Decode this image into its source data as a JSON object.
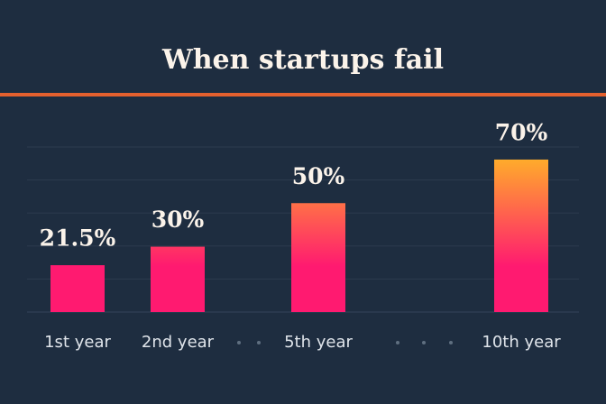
{
  "chart_data": {
    "type": "bar",
    "title": "When startups fail",
    "categories": [
      "1st year",
      "2nd year",
      "5th year",
      "10th year"
    ],
    "values": [
      21.5,
      30,
      50,
      70
    ],
    "value_labels": [
      "21.5%",
      "30%",
      "50%",
      "70%"
    ],
    "gradient": [
      "#ff1a70",
      "#ffab2b"
    ],
    "grid": true
  }
}
